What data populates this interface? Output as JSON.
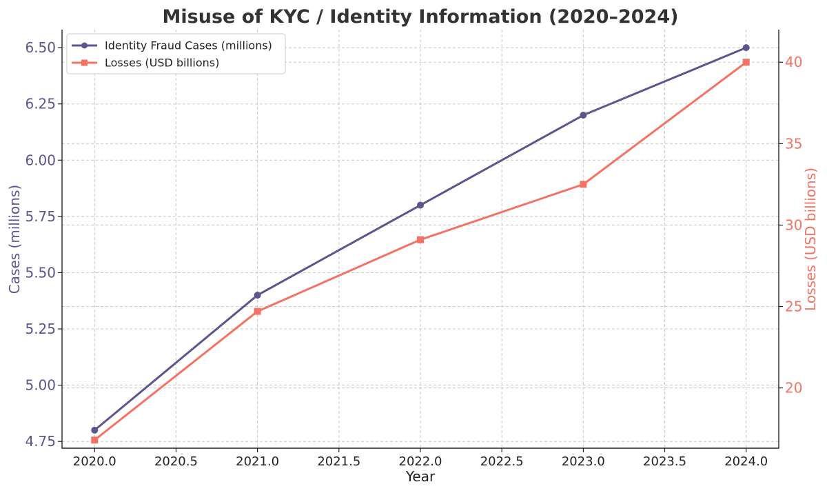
{
  "chart_data": {
    "type": "line",
    "title": "Misuse of KYC / Identity Information (2020–2024)",
    "xlabel": "Year",
    "ylabel_left": "Cases (millions)",
    "ylabel_right": "Losses (USD billions)",
    "x": [
      2020,
      2021,
      2022,
      2023,
      2024
    ],
    "xlim": [
      2019.8,
      2024.2
    ],
    "x_ticks": [
      "2020.0",
      "2020.5",
      "2021.0",
      "2021.5",
      "2022.0",
      "2022.5",
      "2023.0",
      "2023.5",
      "2024.0"
    ],
    "ylim_left": [
      4.72,
      6.58
    ],
    "ylim_right": [
      16.3,
      42.0
    ],
    "y_ticks_left": [
      "4.75",
      "5.00",
      "5.25",
      "5.50",
      "5.75",
      "6.00",
      "6.25",
      "6.50"
    ],
    "y_ticks_right": [
      "20",
      "25",
      "30",
      "35",
      "40"
    ],
    "grid": true,
    "legend_position": "top-left",
    "series": [
      {
        "name": "Identity Fraud Cases (millions)",
        "axis": "left",
        "marker": "circle",
        "color": "#5e548e",
        "values": [
          4.8,
          5.4,
          5.8,
          6.2,
          6.5
        ]
      },
      {
        "name": "Losses (USD billions)",
        "axis": "right",
        "marker": "square",
        "color": "#f47264",
        "values": [
          16.8,
          24.7,
          29.1,
          32.5,
          40.0
        ]
      }
    ]
  }
}
